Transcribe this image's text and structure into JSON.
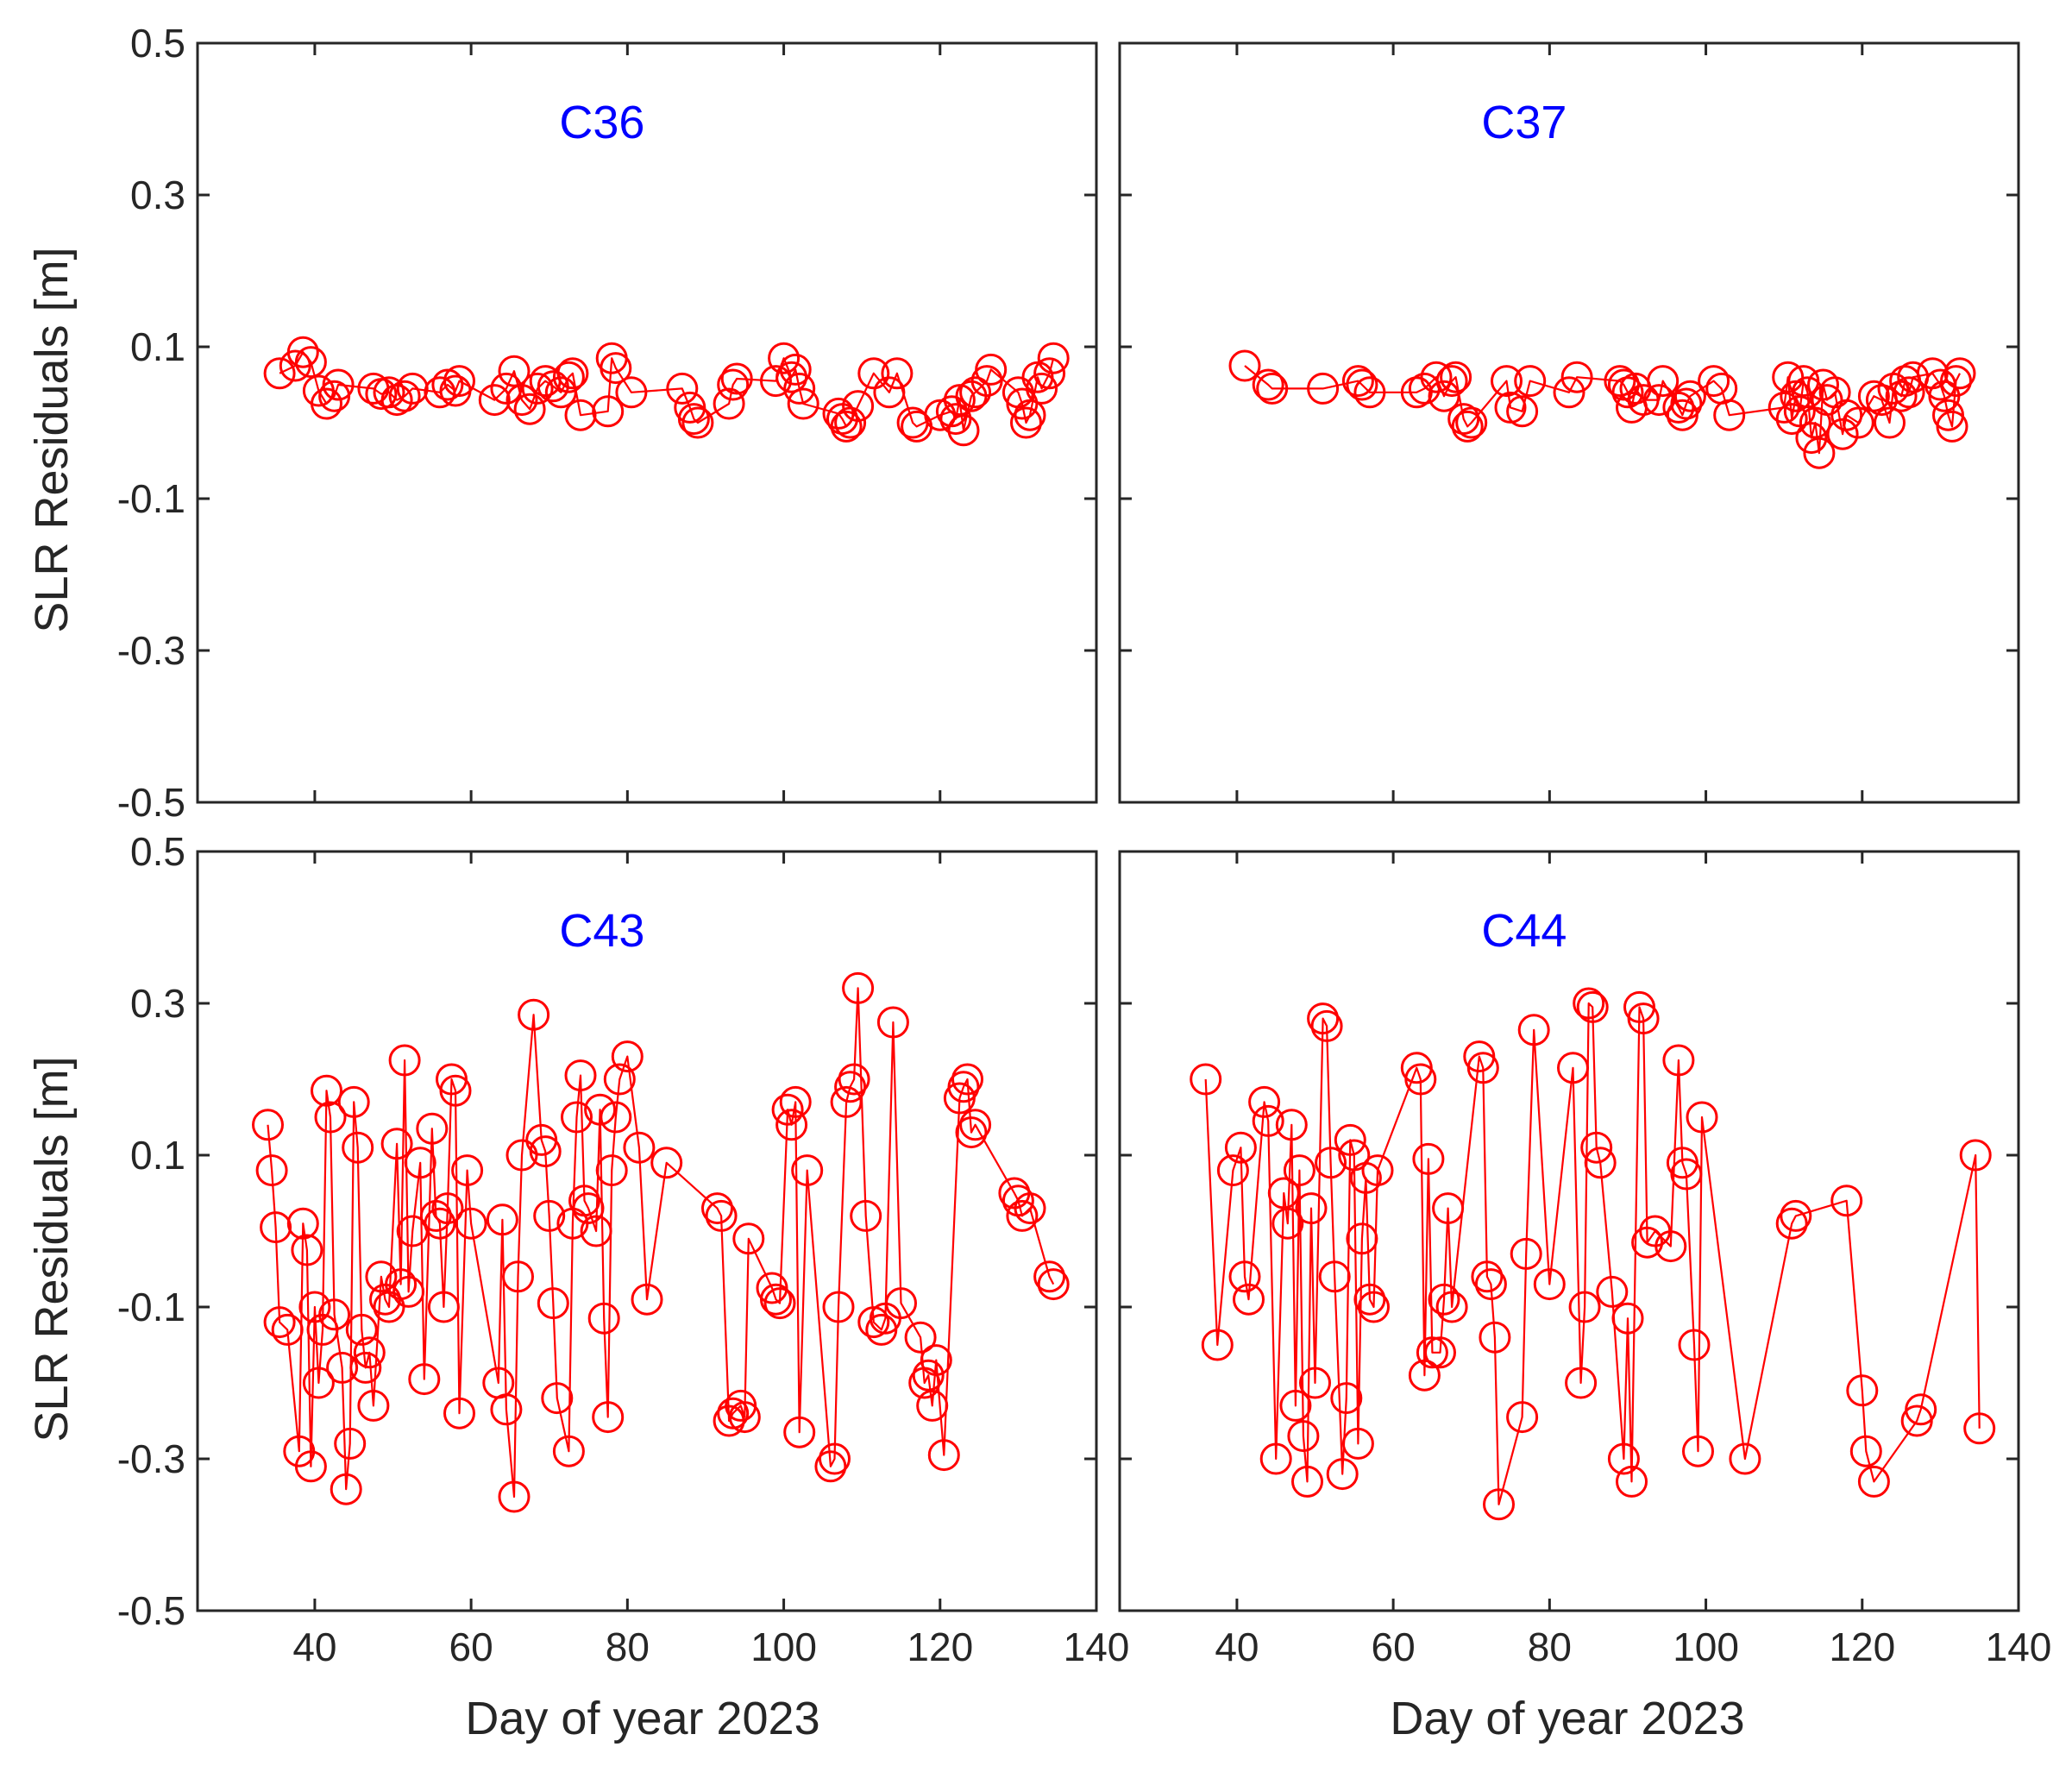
{
  "figure": {
    "ylabel": "SLR Residuals [m]",
    "xlabel": "Day of year 2023",
    "xlim": [
      25,
      140
    ],
    "ylim": [
      -0.5,
      0.5
    ],
    "xticks": [
      40,
      60,
      80,
      100,
      120,
      140
    ],
    "yticks": [
      -0.5,
      -0.3,
      -0.1,
      0.1,
      0.3,
      0.5
    ],
    "xtick_labels": [
      "40",
      "60",
      "80",
      "100",
      "120",
      "140"
    ],
    "ytick_labels": [
      "-0.5",
      "-0.3",
      "-0.1",
      "0.1",
      "0.3",
      "0.5"
    ],
    "series_color": "#ff0000",
    "title_color": "#0000ff",
    "marker": "circle",
    "grid": false
  },
  "chart_data": [
    {
      "type": "line",
      "panel_label": "C36",
      "x": [
        35.5,
        37.5,
        38.5,
        39.5,
        40.5,
        41.5,
        42.5,
        43.0,
        47.5,
        48.5,
        49.5,
        50.5,
        51.5,
        52.5,
        56.0,
        57.0,
        58.0,
        58.5,
        63.0,
        64.5,
        65.5,
        66.5,
        67.5,
        68.5,
        69.5,
        70.5,
        71.5,
        72.5,
        73.0,
        74.0,
        77.5,
        78.0,
        78.5,
        80.5,
        87.0,
        88.0,
        88.5,
        89.0,
        93.0,
        93.5,
        94.0,
        99.0,
        100.0,
        101.0,
        101.5,
        102.0,
        102.5,
        107.0,
        107.5,
        108.0,
        108.5,
        109.5,
        111.5,
        113.5,
        114.5,
        116.5,
        117.0,
        120.0,
        121.5,
        122.0,
        122.5,
        123.0,
        124.0,
        124.5,
        126.0,
        126.5,
        130.0,
        130.5,
        131.0,
        131.5,
        132.5,
        133.0,
        134.0,
        134.5
      ],
      "y": [
        0.065,
        0.075,
        0.093,
        0.08,
        0.042,
        0.025,
        0.035,
        0.05,
        0.045,
        0.038,
        0.04,
        0.03,
        0.035,
        0.045,
        0.04,
        0.05,
        0.042,
        0.055,
        0.03,
        0.045,
        0.068,
        0.03,
        0.018,
        0.045,
        0.055,
        0.048,
        0.04,
        0.06,
        0.065,
        0.01,
        0.015,
        0.085,
        0.072,
        0.04,
        0.045,
        0.02,
        0.005,
        0.0,
        0.025,
        0.05,
        0.058,
        0.055,
        0.085,
        0.06,
        0.07,
        0.045,
        0.025,
        0.012,
        0.005,
        -0.005,
        0.0,
        0.022,
        0.065,
        0.04,
        0.065,
        0.0,
        -0.005,
        0.01,
        0.015,
        0.005,
        0.03,
        -0.01,
        0.035,
        0.04,
        0.055,
        0.07,
        0.04,
        0.025,
        0.0,
        0.01,
        0.06,
        0.045,
        0.065,
        0.085
      ]
    },
    {
      "type": "line",
      "panel_label": "C37",
      "x": [
        41.0,
        44.0,
        44.5,
        51.0,
        55.5,
        56.0,
        57.0,
        63.0,
        64.0,
        65.5,
        66.5,
        67.5,
        68.0,
        69.0,
        69.5,
        70.0,
        74.5,
        75.0,
        76.5,
        77.5,
        82.5,
        83.5,
        89.0,
        89.5,
        90.0,
        90.5,
        91.0,
        92.0,
        94.0,
        94.5,
        96.5,
        97.0,
        97.5,
        98.0,
        101.0,
        102.0,
        103.0,
        110.0,
        110.5,
        111.0,
        111.5,
        112.0,
        112.5,
        113.0,
        113.5,
        114.0,
        114.5,
        115.0,
        115.5,
        116.5,
        117.5,
        118.0,
        119.5,
        121.5,
        122.5,
        123.5,
        124.0,
        125.0,
        125.5,
        126.0,
        126.5,
        129.0,
        130.0,
        130.5,
        131.0,
        131.5,
        132.0,
        132.5
      ],
      "y": [
        0.075,
        0.05,
        0.045,
        0.045,
        0.055,
        0.05,
        0.04,
        0.04,
        0.045,
        0.06,
        0.035,
        0.055,
        0.06,
        0.005,
        -0.005,
        0.0,
        0.055,
        0.02,
        0.015,
        0.055,
        0.04,
        0.06,
        0.055,
        0.05,
        0.04,
        0.02,
        0.045,
        0.03,
        0.03,
        0.055,
        0.02,
        0.01,
        0.025,
        0.035,
        0.055,
        0.045,
        0.01,
        0.02,
        0.06,
        0.005,
        0.035,
        0.015,
        0.055,
        0.04,
        -0.02,
        0.0,
        -0.04,
        0.05,
        0.03,
        0.04,
        -0.015,
        0.01,
        0.0,
        0.035,
        0.03,
        0.0,
        0.045,
        0.035,
        0.055,
        0.04,
        0.06,
        0.065,
        0.05,
        0.035,
        0.01,
        -0.005,
        0.055,
        0.065
      ]
    },
    {
      "type": "line",
      "panel_label": "C43",
      "x": [
        34.0,
        34.5,
        35.0,
        35.5,
        36.5,
        38.0,
        38.5,
        39.0,
        39.5,
        40.0,
        40.5,
        41.0,
        41.5,
        42.0,
        42.5,
        43.5,
        44.0,
        44.5,
        45.0,
        45.5,
        46.0,
        46.5,
        47.0,
        47.5,
        48.5,
        49.0,
        49.5,
        50.5,
        51.0,
        51.5,
        52.0,
        52.5,
        53.5,
        54.0,
        55.0,
        55.5,
        56.0,
        56.5,
        57.0,
        57.5,
        58.0,
        58.5,
        59.5,
        60.0,
        63.5,
        64.0,
        64.5,
        65.5,
        66.0,
        66.5,
        68.0,
        69.0,
        69.5,
        70.0,
        70.5,
        71.0,
        72.5,
        73.0,
        73.5,
        74.0,
        74.5,
        75.0,
        76.0,
        76.5,
        77.0,
        77.5,
        78.0,
        78.5,
        79.0,
        80.0,
        81.5,
        82.5,
        85.0,
        91.5,
        92.0,
        93.0,
        93.5,
        94.5,
        95.0,
        95.5,
        98.5,
        99.0,
        99.5,
        100.5,
        101.0,
        101.5,
        102.0,
        103.0,
        106.0,
        106.5,
        107.0,
        108.0,
        108.5,
        109.0,
        109.5,
        110.5,
        111.5,
        112.5,
        113.0,
        114.0,
        115.0,
        117.5,
        118.0,
        118.5,
        119.0,
        119.5,
        120.5,
        122.5,
        123.0,
        123.5,
        124.0,
        124.5,
        129.5,
        130.0,
        130.5,
        131.5,
        134.0,
        134.5
      ],
      "y": [
        0.14,
        0.08,
        0.005,
        -0.12,
        -0.13,
        -0.29,
        0.01,
        -0.025,
        -0.31,
        -0.1,
        -0.2,
        -0.13,
        0.185,
        0.15,
        -0.11,
        -0.18,
        -0.34,
        -0.28,
        0.17,
        0.11,
        -0.13,
        -0.18,
        -0.16,
        -0.23,
        -0.06,
        -0.09,
        -0.1,
        0.115,
        -0.07,
        0.225,
        -0.08,
        0.0,
        0.09,
        -0.195,
        0.135,
        0.02,
        0.01,
        -0.1,
        0.03,
        0.2,
        0.185,
        -0.24,
        0.08,
        0.01,
        -0.2,
        0.015,
        -0.235,
        -0.35,
        -0.06,
        0.1,
        0.285,
        0.12,
        0.105,
        0.02,
        -0.095,
        -0.22,
        -0.29,
        0.01,
        0.15,
        0.205,
        0.04,
        0.03,
        0.0,
        0.16,
        -0.115,
        -0.245,
        0.08,
        0.15,
        0.2,
        0.23,
        0.11,
        -0.09,
        0.09,
        0.03,
        0.02,
        -0.25,
        -0.24,
        -0.23,
        -0.245,
        -0.01,
        -0.075,
        -0.09,
        -0.095,
        0.16,
        0.14,
        0.17,
        -0.265,
        0.08,
        -0.31,
        -0.3,
        -0.1,
        0.17,
        0.19,
        0.2,
        0.32,
        0.02,
        -0.12,
        -0.13,
        -0.115,
        0.275,
        -0.095,
        -0.14,
        -0.2,
        -0.19,
        -0.23,
        -0.17,
        -0.295,
        0.175,
        0.19,
        0.2,
        0.13,
        0.14,
        0.05,
        0.04,
        0.02,
        0.03,
        -0.06,
        -0.07
      ]
    },
    {
      "type": "line",
      "panel_label": "C44",
      "x": [
        36.0,
        37.5,
        39.5,
        40.5,
        41.0,
        41.5,
        43.5,
        44.0,
        45.0,
        46.0,
        46.5,
        47.0,
        47.5,
        48.0,
        48.5,
        49.0,
        49.5,
        50.0,
        51.0,
        51.5,
        52.0,
        52.5,
        53.5,
        54.0,
        54.5,
        55.0,
        55.5,
        56.0,
        56.5,
        57.0,
        57.5,
        58.0,
        63.0,
        63.5,
        64.0,
        64.5,
        65.0,
        66.0,
        66.5,
        67.0,
        67.5,
        71.0,
        71.5,
        72.0,
        72.5,
        73.0,
        73.5,
        76.5,
        77.0,
        78.0,
        80.0,
        83.0,
        84.0,
        84.5,
        85.0,
        85.5,
        86.0,
        86.5,
        88.0,
        89.5,
        90.0,
        90.5,
        91.5,
        92.0,
        92.5,
        93.5,
        95.5,
        96.5,
        97.0,
        97.5,
        98.5,
        99.0,
        99.5,
        105.0,
        111.0,
        111.5,
        118.0,
        120.0,
        120.5,
        121.5,
        127.0,
        127.5,
        134.5,
        135.0
      ],
      "y": [
        0.2,
        -0.15,
        0.08,
        0.11,
        -0.06,
        -0.09,
        0.17,
        0.145,
        -0.3,
        0.05,
        0.01,
        0.14,
        -0.23,
        0.08,
        -0.27,
        -0.33,
        0.03,
        -0.2,
        0.28,
        0.27,
        0.09,
        -0.06,
        -0.32,
        -0.22,
        0.12,
        0.1,
        -0.28,
        -0.01,
        0.07,
        -0.09,
        -0.1,
        0.08,
        0.215,
        0.2,
        -0.19,
        0.095,
        -0.16,
        -0.16,
        -0.09,
        0.03,
        -0.1,
        0.23,
        0.215,
        -0.06,
        -0.07,
        -0.14,
        -0.36,
        -0.245,
        -0.03,
        0.265,
        -0.07,
        0.215,
        -0.2,
        -0.1,
        0.3,
        0.295,
        0.11,
        0.09,
        -0.08,
        -0.3,
        -0.115,
        -0.33,
        0.295,
        0.28,
        -0.015,
        0.0,
        -0.02,
        0.225,
        0.09,
        0.075,
        -0.15,
        -0.29,
        0.15,
        -0.3,
        0.01,
        0.02,
        0.04,
        -0.21,
        -0.29,
        -0.33,
        -0.25,
        -0.235,
        0.1,
        -0.26
      ]
    }
  ]
}
